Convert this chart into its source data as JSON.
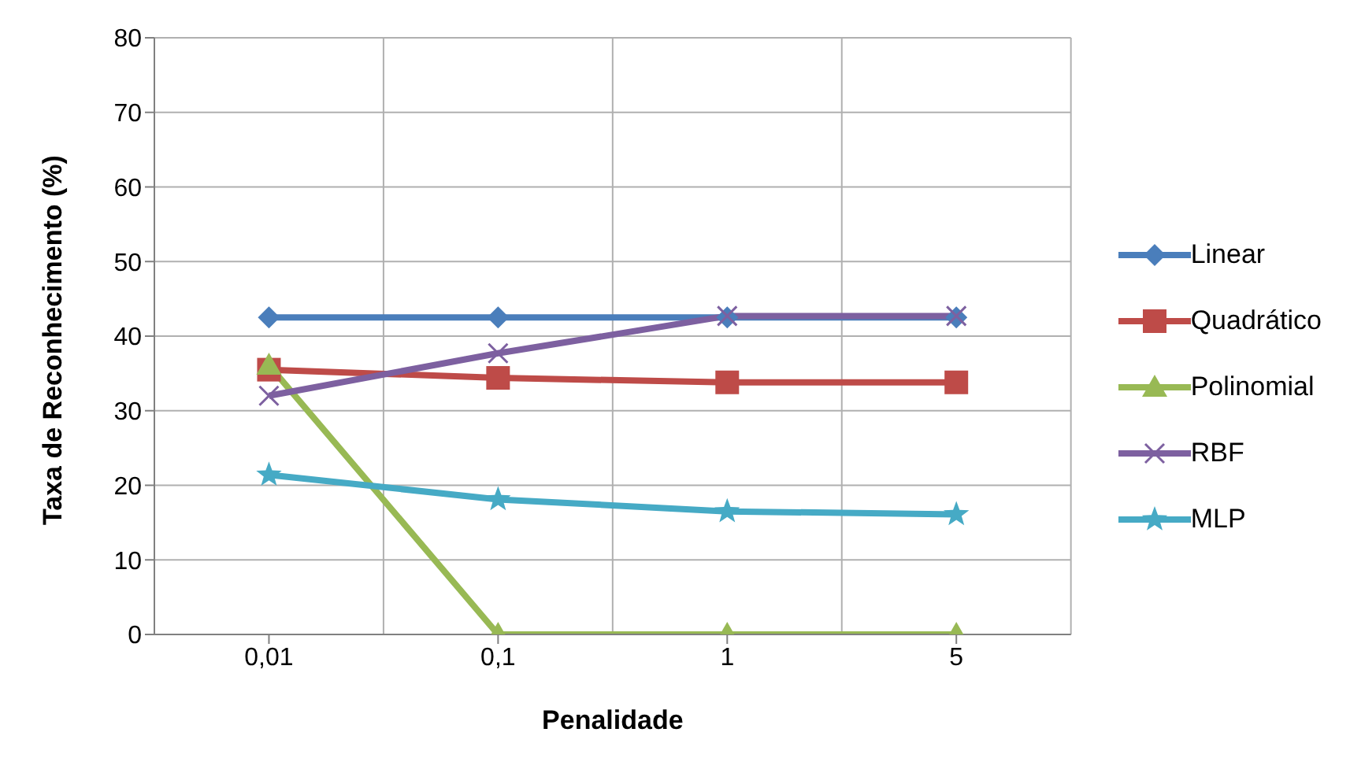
{
  "chart_data": {
    "type": "line",
    "xlabel": "Penalidade",
    "ylabel": "Taxa de Reconhecimento (%)",
    "categories": [
      "0,01",
      "0,1",
      "1",
      "5"
    ],
    "series": [
      {
        "name": "Linear",
        "color": "#4a7ebb",
        "marker": "diamond",
        "values": [
          42.5,
          42.5,
          42.5,
          42.5
        ]
      },
      {
        "name": "Quadrático",
        "color": "#be4b48",
        "marker": "square",
        "values": [
          35.5,
          34.4,
          33.8,
          33.8
        ]
      },
      {
        "name": "Polinomial",
        "color": "#98b954",
        "marker": "triangle",
        "values": [
          36.1,
          0,
          0,
          0
        ]
      },
      {
        "name": "RBF",
        "color": "#7d60a0",
        "marker": "cross",
        "values": [
          32,
          37.7,
          42.7,
          42.7
        ]
      },
      {
        "name": "MLP",
        "color": "#46aac5",
        "marker": "star",
        "values": [
          21.4,
          18.1,
          16.5,
          16.1
        ]
      }
    ],
    "ylim": [
      0,
      80
    ],
    "yticks": [
      0,
      10,
      20,
      30,
      40,
      50,
      60,
      70,
      80
    ],
    "grid": true,
    "legend": "right",
    "line_style": "solid"
  }
}
